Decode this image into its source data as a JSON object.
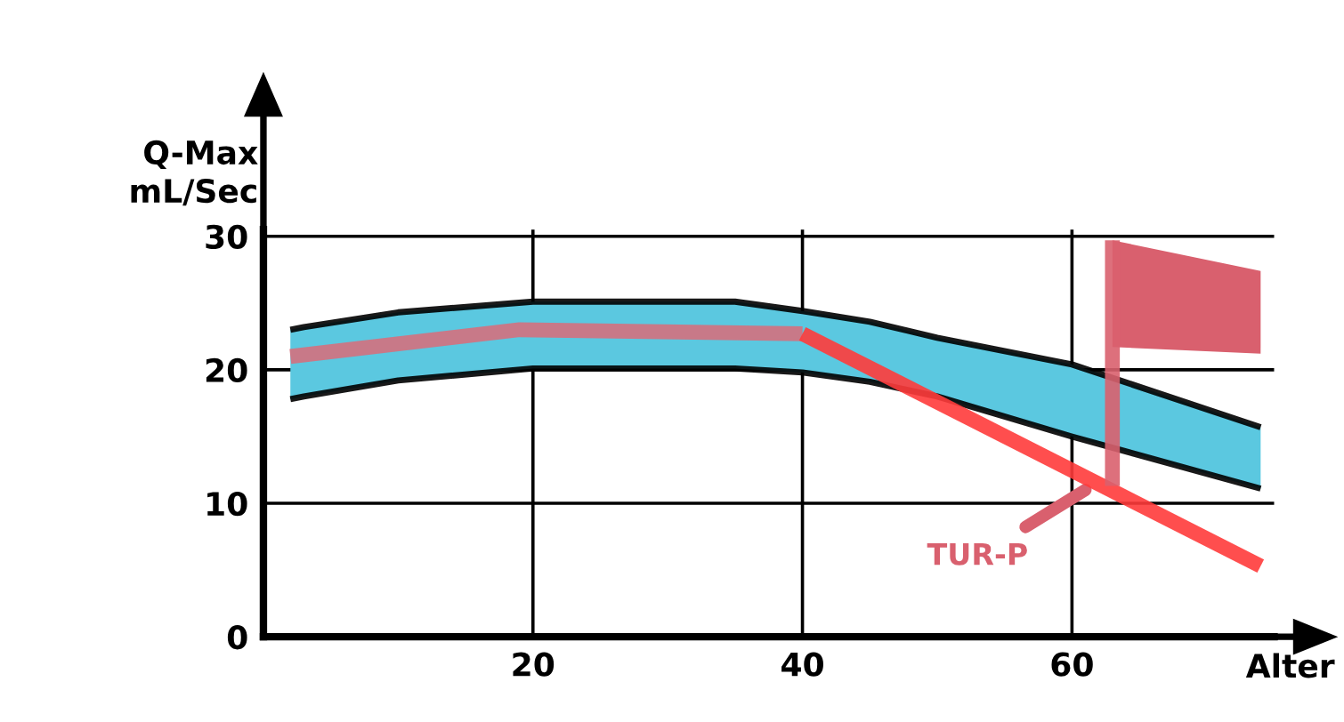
{
  "chart_data": {
    "type": "line",
    "xlabel": "Alter",
    "ylabel": "Q-Max\nmL/Sec",
    "xlim": [
      0,
      75
    ],
    "ylim": [
      0,
      30.5
    ],
    "xticks": [
      20,
      40,
      60
    ],
    "yticks": [
      0,
      10,
      20,
      30
    ],
    "grid": true,
    "series": [
      {
        "type": "area",
        "color": "#5bc8e0",
        "x": [
          2,
          3,
          10,
          20,
          35,
          40,
          45,
          50,
          60,
          74
        ],
        "values": [
          null,
          null,
          null,
          null,
          null,
          null,
          null,
          null,
          null,
          null
        ],
        "lower": [
          17.8,
          18,
          19.2,
          20.1,
          20.1,
          19.8,
          19.1,
          18,
          15,
          11.1
        ],
        "upper": [
          23,
          23.2,
          24.3,
          25.1,
          25.1,
          24.4,
          23.6,
          22.4,
          20.4,
          15.7
        ]
      },
      {
        "color": "#000000",
        "x": [
          2,
          3,
          10,
          20,
          35,
          40,
          45,
          50,
          60,
          74
        ],
        "values": [
          23,
          23.2,
          24.3,
          25.1,
          25.1,
          24.4,
          23.6,
          22.4,
          20.4,
          15.7
        ]
      },
      {
        "color": "#000000",
        "x": [
          2,
          3,
          10,
          20,
          35,
          40,
          45,
          50,
          60,
          74
        ],
        "values": [
          17.8,
          18,
          19.2,
          20.1,
          20.1,
          19.8,
          19.1,
          18,
          15,
          11.1
        ]
      },
      {
        "color": "#d4707e",
        "x": [
          2,
          19,
          40
        ],
        "values": [
          21,
          23,
          22.7
        ]
      },
      {
        "color": "#ff3b3b",
        "x": [
          40,
          74
        ],
        "values": [
          22.7,
          5.3
        ]
      },
      {
        "color": "#d9606e",
        "x": [
          63,
          63
        ],
        "values": [
          11.3,
          29.7
        ]
      },
      {
        "type": "area",
        "color": "#d9606e",
        "x": [
          63,
          74
        ],
        "values": [
          null,
          null
        ],
        "lower": [
          21.7,
          21.2
        ],
        "upper": [
          29.7,
          27.4
        ]
      }
    ],
    "annotations": [
      {
        "text": "TUR-P",
        "x": 61,
        "y": 11
      }
    ]
  }
}
